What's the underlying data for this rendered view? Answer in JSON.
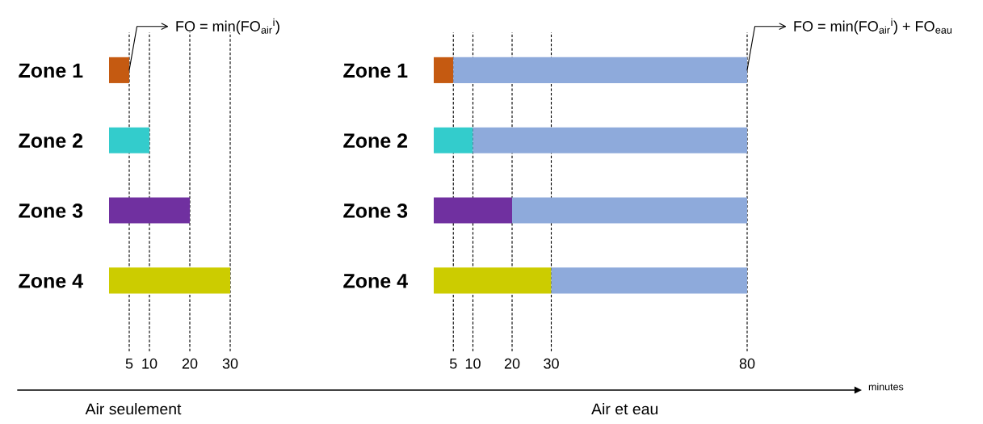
{
  "chart_data": [
    {
      "type": "bar",
      "orientation": "horizontal",
      "xlabel": "Air seulement",
      "categories": [
        "Zone 1",
        "Zone 2",
        "Zone 3",
        "Zone 4"
      ],
      "values": [
        5,
        10,
        20,
        30
      ],
      "colors": [
        "#c55a11",
        "#33cccc",
        "#7030a0",
        "#cccc00"
      ],
      "xlim": [
        0,
        30
      ],
      "xticks": [
        5,
        10,
        20,
        30
      ],
      "grid": "x",
      "legend": false,
      "annotations": [
        {
          "text": "FO = min(FO$_{air}$$^{i}$)",
          "x": 5,
          "y": "Zone 1"
        }
      ]
    },
    {
      "type": "bar",
      "orientation": "horizontal",
      "stacked": true,
      "xlabel": "Air et eau",
      "categories": [
        "Zone 1",
        "Zone 2",
        "Zone 3",
        "Zone 4"
      ],
      "series": [
        {
          "colors": [
            "#c55a11",
            "#33cccc",
            "#7030a0",
            "#cccc00"
          ],
          "values": [
            5,
            10,
            20,
            30
          ]
        },
        {
          "color": "#8eaadb",
          "values": [
            75,
            70,
            60,
            50
          ]
        }
      ],
      "xlim": [
        0,
        80
      ],
      "xticks": [
        5,
        10,
        20,
        30,
        80
      ],
      "grid": "x",
      "legend": false,
      "annotations": [
        {
          "text": "FO = min(FO$_{air}$$^{i}$) + FO$_{eau}$",
          "x": 80,
          "y": "Zone 1"
        },
        "minutes"
      ]
    }
  ]
}
